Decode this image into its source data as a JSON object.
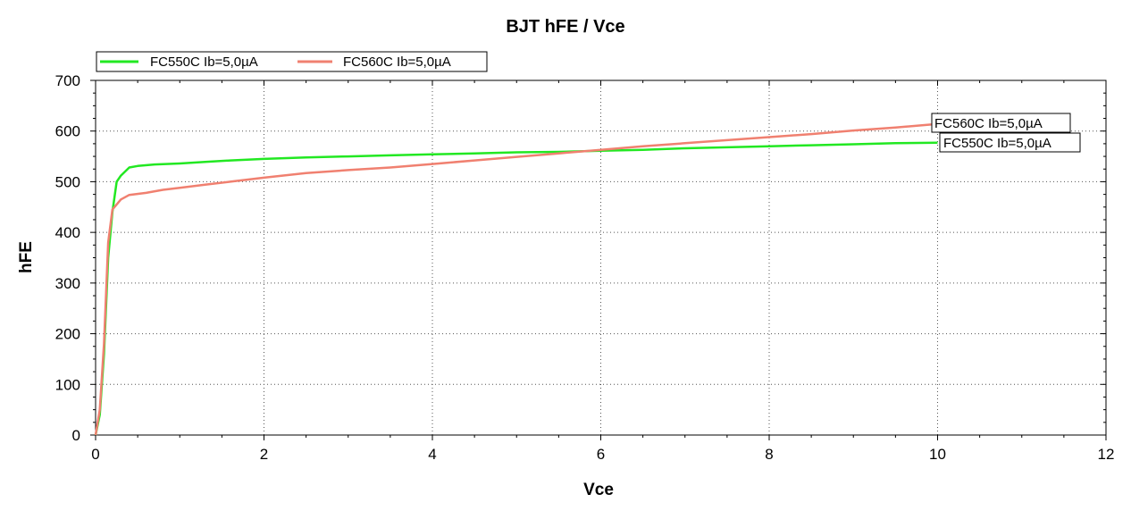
{
  "chart_data": {
    "type": "line",
    "title": "BJT hFE / Vce",
    "xlabel": "Vce",
    "ylabel": "hFE",
    "xlim": [
      0,
      12
    ],
    "ylim": [
      0,
      700
    ],
    "xticks": [
      "0",
      "2",
      "4",
      "6",
      "8",
      "10",
      "12"
    ],
    "yticks": [
      "0",
      "100",
      "200",
      "300",
      "400",
      "500",
      "600",
      "700"
    ],
    "grid": true,
    "legend_position": "top-left",
    "series": [
      {
        "name": "FC550C Ib=5,0µA",
        "color": "#22e822",
        "end_label": "FC550C Ib=5,0µA",
        "x": [
          0.0,
          0.05,
          0.1,
          0.15,
          0.2,
          0.25,
          0.3,
          0.4,
          0.5,
          0.7,
          1.0,
          1.3,
          1.6,
          2.0,
          2.5,
          3.0,
          3.5,
          4.0,
          4.5,
          5.0,
          5.5,
          6.0,
          6.5,
          7.0,
          7.5,
          8.0,
          8.5,
          9.0,
          9.5,
          10.0
        ],
        "y": [
          0,
          40,
          160,
          350,
          440,
          500,
          512,
          528,
          531,
          534,
          536,
          539,
          542,
          545,
          548,
          550,
          552,
          554,
          556,
          558,
          559,
          561,
          563,
          566,
          568,
          570,
          572,
          574,
          576,
          577
        ]
      },
      {
        "name": "FC560C Ib=5,0µA",
        "color": "#f08070",
        "end_label": "FC560C Ib=5,0µA",
        "x": [
          0.0,
          0.05,
          0.1,
          0.15,
          0.2,
          0.3,
          0.4,
          0.6,
          0.8,
          1.0,
          1.3,
          1.6,
          2.0,
          2.5,
          3.0,
          3.5,
          4.0,
          4.5,
          5.0,
          5.5,
          6.0,
          6.5,
          7.0,
          7.5,
          8.0,
          8.5,
          9.0,
          9.5,
          10.0
        ],
        "y": [
          0,
          50,
          180,
          380,
          445,
          465,
          474,
          478,
          484,
          488,
          494,
          500,
          508,
          517,
          523,
          528,
          535,
          542,
          549,
          556,
          563,
          570,
          576,
          582,
          588,
          594,
          601,
          607,
          614
        ]
      }
    ]
  }
}
